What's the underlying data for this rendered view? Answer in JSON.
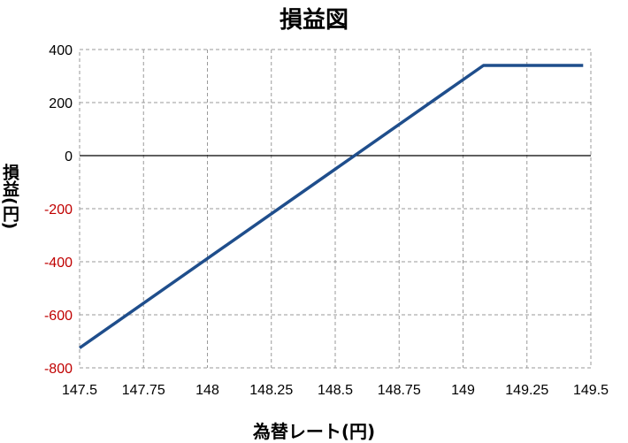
{
  "chart_data": {
    "type": "line",
    "title": "損益図",
    "xlabel": "為替レート(円)",
    "ylabel": "損益(円)",
    "xlim": [
      147.5,
      149.5
    ],
    "ylim": [
      -800,
      400
    ],
    "x_ticks": [
      "147.5",
      "147.75",
      "148",
      "148.25",
      "148.5",
      "148.75",
      "149",
      "149.25",
      "149.5"
    ],
    "y_ticks": [
      "400",
      "200",
      "0",
      "-200",
      "-400",
      "-600",
      "-800"
    ],
    "negative_tick_color": "#c00000",
    "grid": true,
    "zero_line": true,
    "series": [
      {
        "color": "#1f4e8c",
        "points": [
          [
            147.5,
            -725
          ],
          [
            149.08,
            340
          ],
          [
            149.47,
            340
          ]
        ]
      }
    ]
  }
}
